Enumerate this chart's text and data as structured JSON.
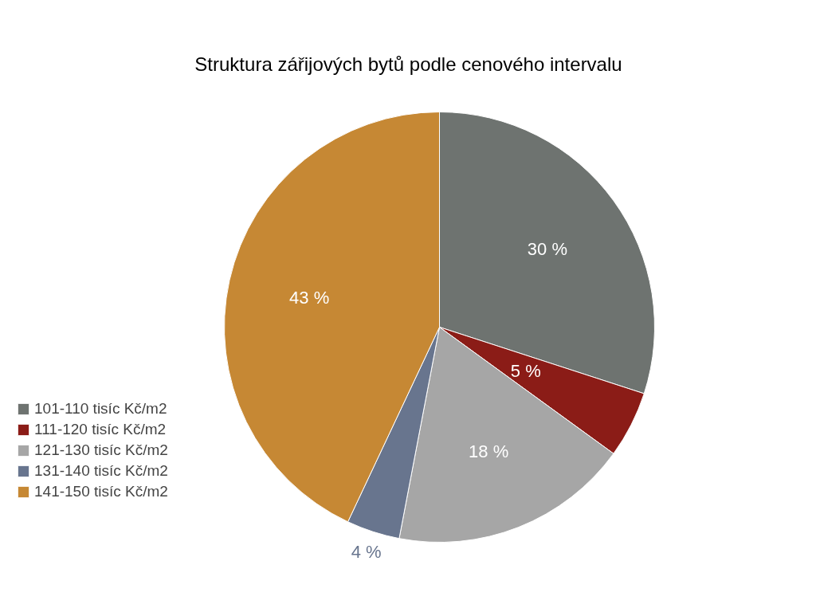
{
  "chart_data": {
    "type": "pie",
    "title": "Struktura zářijových bytů podle cenového intervalu",
    "categories": [
      "101-110 tisíc Kč/m2",
      "111-120 tisíc Kč/m2",
      "121-130 tisíc Kč/m2",
      "131-140 tisíc Kč/m2",
      "141-150 tisíc Kč/m2"
    ],
    "values": [
      30,
      5,
      18,
      4,
      43
    ],
    "colors": [
      "#6e7370",
      "#8b1c17",
      "#a6a6a6",
      "#68758e",
      "#c68834"
    ],
    "value_labels": [
      "30 %",
      "5 %",
      "18 %",
      "4 %",
      "43 %"
    ],
    "legend": "left"
  }
}
